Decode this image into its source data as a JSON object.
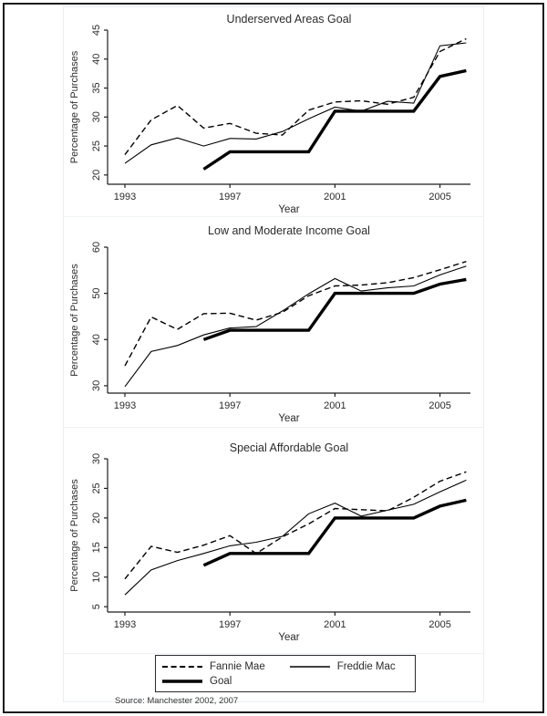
{
  "colors": {
    "line": "#000000",
    "axis": "#1f1f1f",
    "text": "#2b2b2b",
    "page_border": "#1c1c1c",
    "panel_border": "#e9eff4",
    "background": "#ffffff"
  },
  "chart_data": [
    {
      "type": "line",
      "title": "Underserved Areas Goal",
      "xlabel": "Year",
      "ylabel": "Percentage of Purchases",
      "x": [
        1993,
        1994,
        1995,
        1996,
        1997,
        1998,
        1999,
        2000,
        2001,
        2002,
        2003,
        2004,
        2005,
        2006
      ],
      "xticks": [
        1993,
        1997,
        2001,
        2005
      ],
      "yticks": [
        20,
        25,
        30,
        35,
        40,
        45
      ],
      "ylim": [
        18.4,
        45
      ],
      "legend_position": "bottom-shared",
      "grid": false,
      "series": [
        {
          "name": "Fannie Mae",
          "style": "dashed",
          "values": [
            23.5,
            29.5,
            32.0,
            28.1,
            28.9,
            27.2,
            26.9,
            31.2,
            32.6,
            32.8,
            32.2,
            33.4,
            41.3,
            43.5
          ]
        },
        {
          "name": "Freddie Mac",
          "style": "solid",
          "values": [
            22.0,
            25.2,
            26.4,
            25.0,
            26.3,
            26.2,
            27.5,
            29.7,
            31.7,
            31.0,
            32.7,
            32.4,
            42.3,
            42.8
          ]
        },
        {
          "name": "Goal",
          "style": "thick",
          "values": [
            null,
            null,
            null,
            21,
            24,
            24,
            24,
            24,
            31,
            31,
            31,
            31,
            37,
            38
          ]
        }
      ]
    },
    {
      "type": "line",
      "title": "Low and Moderate Income Goal",
      "xlabel": "Year",
      "ylabel": "Percentage of Purchases",
      "x": [
        1993,
        1994,
        1995,
        1996,
        1997,
        1998,
        1999,
        2000,
        2001,
        2002,
        2003,
        2004,
        2005,
        2006
      ],
      "xticks": [
        1993,
        1997,
        2001,
        2005
      ],
      "yticks": [
        30,
        40,
        50,
        60
      ],
      "ylim": [
        28.4,
        60
      ],
      "legend_position": "bottom-shared",
      "grid": false,
      "series": [
        {
          "name": "Fannie Mae",
          "style": "dashed",
          "values": [
            34.3,
            44.9,
            42.2,
            45.6,
            45.7,
            44.2,
            45.9,
            49.5,
            51.6,
            51.8,
            52.3,
            53.4,
            55.1,
            56.9
          ]
        },
        {
          "name": "Freddie Mac",
          "style": "solid",
          "values": [
            29.8,
            37.4,
            38.7,
            41.0,
            42.5,
            42.8,
            46.2,
            49.9,
            53.2,
            50.5,
            51.2,
            51.6,
            54.0,
            55.9
          ]
        },
        {
          "name": "Goal",
          "style": "thick",
          "values": [
            null,
            null,
            null,
            40,
            42,
            42,
            42,
            42,
            50,
            50,
            50,
            50,
            52,
            53
          ]
        }
      ]
    },
    {
      "type": "line",
      "title": "Special Affordable Goal",
      "xlabel": "Year",
      "ylabel": "Percentage of Purchases",
      "x": [
        1993,
        1994,
        1995,
        1996,
        1997,
        1998,
        1999,
        2000,
        2001,
        2002,
        2003,
        2004,
        2005,
        2006
      ],
      "xticks": [
        1993,
        1997,
        2001,
        2005
      ],
      "yticks": [
        5,
        10,
        15,
        20,
        25,
        30
      ],
      "ylim": [
        4.1,
        30
      ],
      "legend_position": "bottom-shared",
      "grid": false,
      "series": [
        {
          "name": "Fannie Mae",
          "style": "dashed",
          "values": [
            9.7,
            15.2,
            14.2,
            15.4,
            17.0,
            14.0,
            16.8,
            19.0,
            21.6,
            21.4,
            21.2,
            23.5,
            26.2,
            27.8
          ]
        },
        {
          "name": "Freddie Mac",
          "style": "solid",
          "values": [
            7.0,
            11.2,
            12.8,
            14.0,
            15.3,
            15.9,
            16.9,
            20.7,
            22.5,
            20.3,
            21.3,
            22.3,
            24.4,
            26.4
          ]
        },
        {
          "name": "Goal",
          "style": "thick",
          "values": [
            null,
            null,
            null,
            12,
            14,
            14,
            14,
            14,
            20,
            20,
            20,
            20,
            22,
            23
          ]
        }
      ]
    }
  ],
  "legend": {
    "items": [
      {
        "label": "Fannie Mae",
        "style": "dashed"
      },
      {
        "label": "Freddie Mac",
        "style": "solid"
      },
      {
        "label": "Goal",
        "style": "thick"
      }
    ]
  },
  "source_note": "Source: Manchester 2002, 2007"
}
